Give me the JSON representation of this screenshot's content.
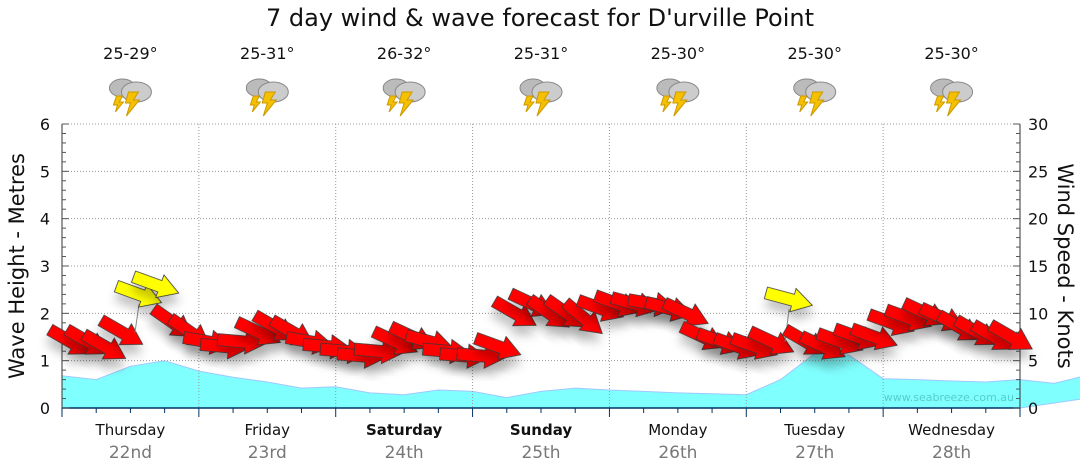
{
  "chart_data": {
    "type": "area",
    "title": "7 day wind & wave forecast for D'urville Point",
    "ylabel": "Wave Height - Metres",
    "y2label": "Wind Speed - Knots",
    "ylim": [
      0,
      6
    ],
    "y2lim": [
      0,
      30
    ],
    "yticks": [
      "0",
      "1",
      "2",
      "3",
      "4",
      "5",
      "6"
    ],
    "y2ticks": [
      "0",
      "5",
      "10",
      "15",
      "20",
      "25",
      "30"
    ],
    "grid": true,
    "watermark": "www.seabreeze.com.au",
    "days": [
      {
        "day": "Thursday",
        "date": "22nd",
        "temp": "25-29°",
        "bold": false
      },
      {
        "day": "Friday",
        "date": "23rd",
        "temp": "25-31°",
        "bold": false
      },
      {
        "day": "Saturday",
        "date": "24th",
        "temp": "26-32°",
        "bold": true
      },
      {
        "day": "Sunday",
        "date": "25th",
        "temp": "25-31°",
        "bold": true
      },
      {
        "day": "Monday",
        "date": "26th",
        "temp": "25-30°",
        "bold": false
      },
      {
        "day": "Tuesday",
        "date": "27th",
        "temp": "25-30°",
        "bold": false
      },
      {
        "day": "Wednesday",
        "date": "28th",
        "temp": "25-30°",
        "bold": false
      }
    ],
    "weather_icon": "thunderstorm-icon",
    "wave_series": {
      "name": "Wave height (m)",
      "interval_hours": 6,
      "values": [
        0.68,
        0.6,
        0.88,
        1.0,
        0.78,
        0.65,
        0.55,
        0.42,
        0.45,
        0.32,
        0.28,
        0.38,
        0.35,
        0.22,
        0.35,
        0.42,
        0.38,
        0.35,
        0.32,
        0.3,
        0.28,
        0.6,
        1.15,
        1.12,
        0.62,
        0.6,
        0.57,
        0.55,
        0.6,
        0.52,
        0.7,
        0.55,
        0.42
      ],
      "color": "#80ffff"
    },
    "wind_series": {
      "name": "Wind speed (knots)",
      "interval_hours": 3,
      "values": [
        7,
        7,
        6.5,
        8,
        12,
        13,
        9,
        8,
        7,
        6.5,
        7,
        8,
        8.5,
        8,
        7,
        6.5,
        6,
        5.5,
        6,
        7,
        7.5,
        7,
        6,
        5.5,
        5.5,
        6.5,
        10,
        11,
        10,
        10,
        9.5,
        10.5,
        11,
        11,
        11,
        10.5,
        10,
        7.5,
        7,
        6.5,
        6.5,
        7,
        11.5,
        7,
        6.5,
        7,
        7.5,
        7.5,
        9,
        9.5,
        10,
        9.5,
        8.5,
        8,
        7.5,
        7.5
      ],
      "direction_deg": [
        120,
        120,
        120,
        120,
        110,
        110,
        125,
        125,
        100,
        95,
        95,
        115,
        120,
        120,
        100,
        95,
        95,
        95,
        95,
        115,
        115,
        105,
        95,
        95,
        95,
        110,
        120,
        115,
        125,
        125,
        130,
        110,
        110,
        105,
        100,
        105,
        115,
        115,
        110,
        110,
        110,
        115,
        105,
        120,
        115,
        110,
        110,
        110,
        110,
        110,
        115,
        115,
        120,
        120,
        120,
        120
      ],
      "gust_flags": [
        0,
        0,
        0,
        0,
        1,
        1,
        0,
        0,
        0,
        0,
        0,
        0,
        0,
        0,
        0,
        0,
        0,
        0,
        0,
        0,
        0,
        0,
        0,
        0,
        0,
        0,
        0,
        0,
        0,
        0,
        0,
        0,
        0,
        0,
        0,
        0,
        0,
        0,
        0,
        0,
        0,
        0,
        1,
        0,
        0,
        0,
        0,
        0,
        0,
        0,
        0,
        0,
        0,
        0,
        0,
        0
      ],
      "color": "#ff0000",
      "gust_color": "#ffff00"
    }
  }
}
